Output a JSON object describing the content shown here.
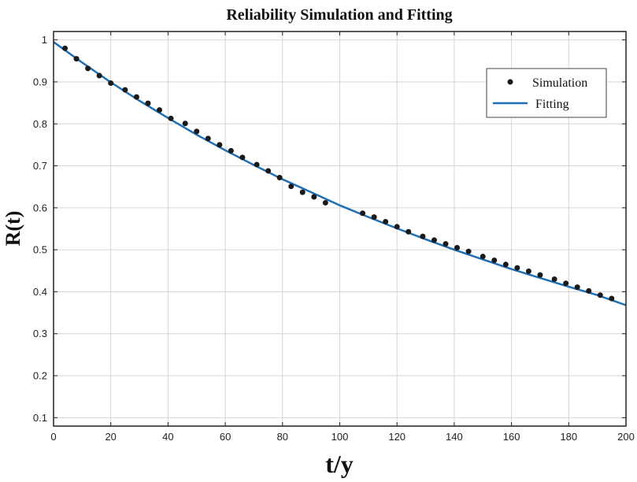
{
  "chart_data": {
    "type": "scatter",
    "title": "Reliability Simulation and Fitting",
    "xlabel": "t/y",
    "ylabel": "R(t)",
    "xlim": [
      0,
      200
    ],
    "ylim": [
      0.08,
      1.02
    ],
    "xticks": [
      0,
      20,
      40,
      60,
      80,
      100,
      120,
      140,
      160,
      180,
      200
    ],
    "yticks": [
      0.1,
      0.2,
      0.3,
      0.4,
      0.5,
      0.6,
      0.7,
      0.8,
      0.9,
      1
    ],
    "xtick_labels": [
      "0",
      "20",
      "40",
      "60",
      "80",
      "100",
      "120",
      "140",
      "160",
      "180",
      "200"
    ],
    "ytick_labels": [
      "0.1",
      "0.2",
      "0.3",
      "0.4",
      "0.5",
      "0.6",
      "0.7",
      "0.8",
      "0.9",
      "1"
    ],
    "grid": true,
    "legend_position": "top-right",
    "series": [
      {
        "name": "Simulation",
        "kind": "scatter",
        "color": "#1a1a1a",
        "x": [
          4,
          8,
          12,
          16,
          20,
          25,
          29,
          33,
          37,
          41,
          46,
          50,
          54,
          58,
          62,
          66,
          71,
          75,
          79,
          83,
          87,
          91,
          95,
          108,
          112,
          116,
          120,
          124,
          129,
          133,
          137,
          141,
          145,
          150,
          154,
          158,
          162,
          166,
          170,
          175,
          179,
          183,
          187,
          191,
          195
        ],
        "y": [
          0.98,
          0.955,
          0.932,
          0.915,
          0.897,
          0.881,
          0.864,
          0.849,
          0.833,
          0.813,
          0.801,
          0.782,
          0.765,
          0.75,
          0.736,
          0.72,
          0.703,
          0.688,
          0.672,
          0.651,
          0.637,
          0.626,
          0.612,
          0.587,
          0.578,
          0.567,
          0.555,
          0.543,
          0.532,
          0.523,
          0.514,
          0.505,
          0.496,
          0.484,
          0.475,
          0.465,
          0.457,
          0.449,
          0.44,
          0.43,
          0.42,
          0.411,
          0.402,
          0.392,
          0.384
        ]
      },
      {
        "name": "Fitting",
        "kind": "line",
        "color": "#1f6fb4",
        "x": [
          0,
          10,
          20,
          30,
          40,
          50,
          60,
          70,
          80,
          90,
          100,
          110,
          120,
          130,
          140,
          150,
          160,
          170,
          180,
          190,
          200
        ],
        "y": [
          0.995,
          0.946,
          0.899,
          0.855,
          0.814,
          0.774,
          0.737,
          0.702,
          0.668,
          0.637,
          0.606,
          0.578,
          0.551,
          0.525,
          0.5,
          0.477,
          0.454,
          0.433,
          0.412,
          0.392,
          0.368
        ]
      }
    ]
  }
}
